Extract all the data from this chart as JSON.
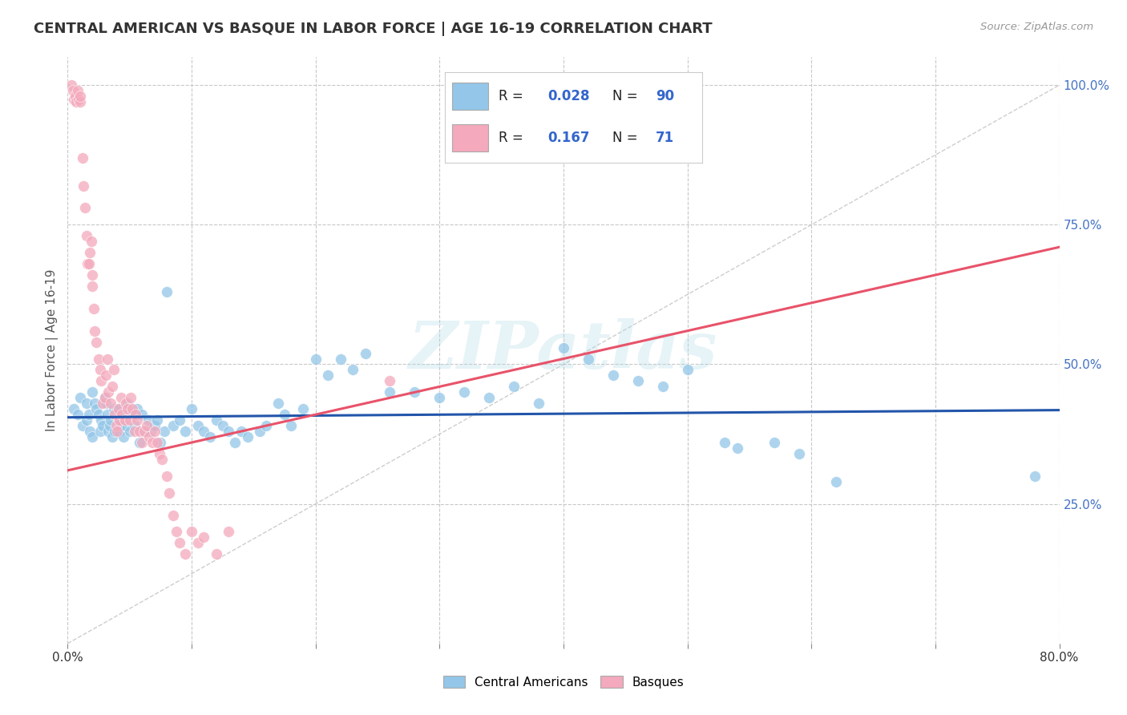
{
  "title": "CENTRAL AMERICAN VS BASQUE IN LABOR FORCE | AGE 16-19 CORRELATION CHART",
  "source_text": "Source: ZipAtlas.com",
  "ylabel": "In Labor Force | Age 16-19",
  "x_min": 0.0,
  "x_max": 0.8,
  "y_min": 0.0,
  "y_max": 1.05,
  "x_tick_vals": [
    0.0,
    0.1,
    0.2,
    0.3,
    0.4,
    0.5,
    0.6,
    0.7,
    0.8
  ],
  "x_label_vals": [
    0.0,
    0.8
  ],
  "y_tick_vals": [
    0.25,
    0.5,
    0.75,
    1.0
  ],
  "y_tick_labels": [
    "25.0%",
    "50.0%",
    "75.0%",
    "100.0%"
  ],
  "blue_R": "0.028",
  "blue_N": "90",
  "pink_R": "0.167",
  "pink_N": "71",
  "blue_color": "#93c6e8",
  "pink_color": "#f4a9bc",
  "blue_trend_color": "#2255aa",
  "pink_trend_color": "#e8536a",
  "diagonal_color": "#c8c8c8",
  "watermark": "ZIPatlas",
  "legend_label_blue": "Central Americans",
  "legend_label_pink": "Basques",
  "blue_scatter_x": [
    0.005,
    0.008,
    0.01,
    0.012,
    0.015,
    0.015,
    0.017,
    0.018,
    0.02,
    0.02,
    0.022,
    0.023,
    0.025,
    0.026,
    0.027,
    0.028,
    0.03,
    0.031,
    0.032,
    0.033,
    0.034,
    0.035,
    0.036,
    0.037,
    0.038,
    0.04,
    0.041,
    0.042,
    0.043,
    0.045,
    0.046,
    0.047,
    0.048,
    0.05,
    0.052,
    0.054,
    0.056,
    0.058,
    0.06,
    0.062,
    0.065,
    0.067,
    0.07,
    0.072,
    0.075,
    0.078,
    0.08,
    0.085,
    0.09,
    0.095,
    0.1,
    0.105,
    0.11,
    0.115,
    0.12,
    0.125,
    0.13,
    0.135,
    0.14,
    0.145,
    0.155,
    0.16,
    0.17,
    0.175,
    0.18,
    0.19,
    0.2,
    0.21,
    0.22,
    0.23,
    0.24,
    0.26,
    0.28,
    0.3,
    0.32,
    0.34,
    0.36,
    0.38,
    0.4,
    0.42,
    0.44,
    0.46,
    0.48,
    0.5,
    0.53,
    0.54,
    0.57,
    0.59,
    0.62,
    0.78
  ],
  "blue_scatter_y": [
    0.42,
    0.41,
    0.44,
    0.39,
    0.43,
    0.4,
    0.41,
    0.38,
    0.45,
    0.37,
    0.43,
    0.42,
    0.41,
    0.38,
    0.4,
    0.39,
    0.44,
    0.43,
    0.41,
    0.38,
    0.39,
    0.4,
    0.37,
    0.42,
    0.38,
    0.42,
    0.4,
    0.38,
    0.39,
    0.37,
    0.41,
    0.39,
    0.43,
    0.38,
    0.41,
    0.39,
    0.42,
    0.36,
    0.41,
    0.38,
    0.4,
    0.38,
    0.39,
    0.4,
    0.36,
    0.38,
    0.63,
    0.39,
    0.4,
    0.38,
    0.42,
    0.39,
    0.38,
    0.37,
    0.4,
    0.39,
    0.38,
    0.36,
    0.38,
    0.37,
    0.38,
    0.39,
    0.43,
    0.41,
    0.39,
    0.42,
    0.51,
    0.48,
    0.51,
    0.49,
    0.52,
    0.45,
    0.45,
    0.44,
    0.45,
    0.44,
    0.46,
    0.43,
    0.53,
    0.51,
    0.48,
    0.47,
    0.46,
    0.49,
    0.36,
    0.35,
    0.36,
    0.34,
    0.29,
    0.3
  ],
  "pink_scatter_x": [
    0.003,
    0.004,
    0.005,
    0.006,
    0.007,
    0.008,
    0.009,
    0.01,
    0.01,
    0.012,
    0.013,
    0.014,
    0.015,
    0.016,
    0.017,
    0.018,
    0.019,
    0.02,
    0.02,
    0.021,
    0.022,
    0.023,
    0.025,
    0.026,
    0.027,
    0.028,
    0.03,
    0.031,
    0.032,
    0.033,
    0.035,
    0.036,
    0.037,
    0.038,
    0.039,
    0.04,
    0.041,
    0.042,
    0.043,
    0.044,
    0.046,
    0.047,
    0.048,
    0.05,
    0.051,
    0.052,
    0.054,
    0.055,
    0.056,
    0.058,
    0.06,
    0.062,
    0.064,
    0.066,
    0.068,
    0.07,
    0.072,
    0.074,
    0.076,
    0.08,
    0.082,
    0.085,
    0.088,
    0.09,
    0.095,
    0.1,
    0.105,
    0.11,
    0.12,
    0.13,
    0.26
  ],
  "pink_scatter_y": [
    1.0,
    0.99,
    0.975,
    0.98,
    0.97,
    0.99,
    0.975,
    0.97,
    0.98,
    0.87,
    0.82,
    0.78,
    0.73,
    0.68,
    0.68,
    0.7,
    0.72,
    0.66,
    0.64,
    0.6,
    0.56,
    0.54,
    0.51,
    0.49,
    0.47,
    0.43,
    0.44,
    0.48,
    0.51,
    0.45,
    0.43,
    0.46,
    0.49,
    0.41,
    0.39,
    0.38,
    0.42,
    0.4,
    0.44,
    0.41,
    0.4,
    0.43,
    0.42,
    0.4,
    0.44,
    0.42,
    0.38,
    0.41,
    0.4,
    0.38,
    0.36,
    0.38,
    0.39,
    0.37,
    0.36,
    0.38,
    0.36,
    0.34,
    0.33,
    0.3,
    0.27,
    0.23,
    0.2,
    0.18,
    0.16,
    0.2,
    0.18,
    0.19,
    0.16,
    0.2,
    0.47
  ],
  "blue_trend_x": [
    0.0,
    0.8
  ],
  "blue_trend_y": [
    0.405,
    0.418
  ],
  "pink_trend_x": [
    0.0,
    0.8
  ],
  "pink_trend_y": [
    0.31,
    0.71
  ]
}
